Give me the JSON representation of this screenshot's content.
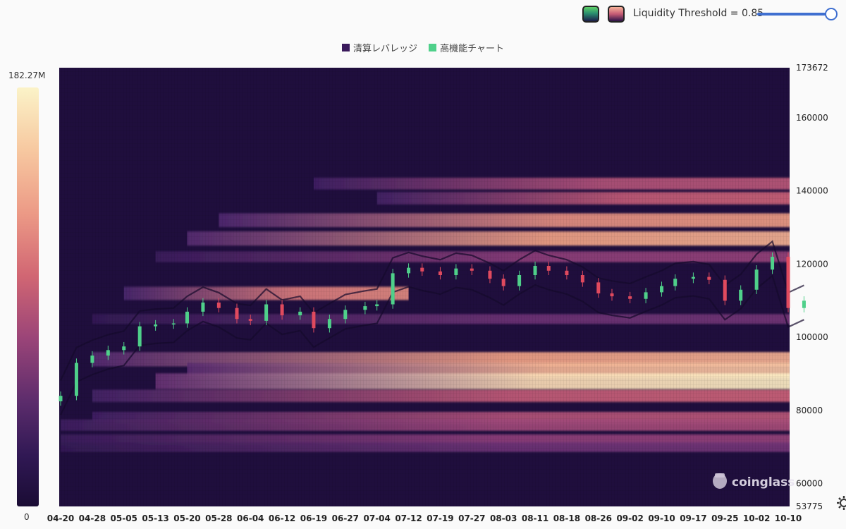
{
  "controls": {
    "threshold_label": "Liquidity Threshold = 0.85",
    "threshold_value": 0.85,
    "palette_options": [
      "green-palette",
      "magma-palette"
    ]
  },
  "legend": [
    {
      "label": "清算レバレッジ",
      "color": "#3a1a5c"
    },
    {
      "label": "高機能チャート",
      "color": "#4fd08a"
    }
  ],
  "colorbar": {
    "max_label": "182.27M",
    "min_label": "0"
  },
  "watermark": "coinglass",
  "icons": {
    "gear": "gear-icon",
    "logo": "coinglass-logo-icon"
  },
  "chart_data": {
    "type": "heatmap",
    "x_ticks": [
      "04-20",
      "04-28",
      "05-05",
      "05-13",
      "05-20",
      "05-28",
      "06-04",
      "06-12",
      "06-19",
      "06-27",
      "07-04",
      "07-12",
      "07-19",
      "07-27",
      "08-03",
      "08-11",
      "08-18",
      "08-26",
      "09-02",
      "09-10",
      "09-17",
      "09-25",
      "10-02",
      "10-10"
    ],
    "y_ticks": [
      173672,
      160000,
      140000,
      120000,
      100000,
      80000,
      60000,
      53775
    ],
    "ylim": [
      53775,
      173672
    ],
    "colorscale": {
      "min": 0,
      "max": 182270000,
      "max_label": "182.27M"
    },
    "liquidation_bands": [
      {
        "price": 142000,
        "intensity": 0.55,
        "start": "06-19"
      },
      {
        "price": 138000,
        "intensity": 0.6,
        "start": "07-04"
      },
      {
        "price": 132000,
        "intensity": 0.75,
        "start": "05-28"
      },
      {
        "price": 127000,
        "intensity": 0.8,
        "start": "05-20"
      },
      {
        "price": 122000,
        "intensity": 0.45,
        "start": "05-13"
      },
      {
        "price": 112000,
        "intensity": 0.7,
        "start": "05-05",
        "end": "07-12"
      },
      {
        "price": 105000,
        "intensity": 0.35,
        "start": "04-28"
      },
      {
        "price": 94000,
        "intensity": 0.8,
        "start": "04-28"
      },
      {
        "price": 91000,
        "intensity": 0.85,
        "start": "05-20"
      },
      {
        "price": 88000,
        "intensity": 0.95,
        "start": "05-13"
      },
      {
        "price": 84000,
        "intensity": 0.6,
        "start": "04-28"
      },
      {
        "price": 78000,
        "intensity": 0.55,
        "start": "04-28"
      },
      {
        "price": 76000,
        "intensity": 0.5,
        "start": "04-20"
      },
      {
        "price": 72000,
        "intensity": 0.45,
        "start": "04-20"
      },
      {
        "price": 70000,
        "intensity": 0.35,
        "start": "04-20"
      }
    ],
    "price_series": {
      "name": "",
      "dates": [
        "04-20",
        "04-24",
        "04-28",
        "05-01",
        "05-05",
        "05-09",
        "05-13",
        "05-17",
        "05-20",
        "05-24",
        "05-28",
        "06-01",
        "06-04",
        "06-08",
        "06-12",
        "06-16",
        "06-19",
        "06-23",
        "06-27",
        "07-01",
        "07-04",
        "07-08",
        "07-12",
        "07-15",
        "07-19",
        "07-23",
        "07-27",
        "07-31",
        "08-03",
        "08-07",
        "08-11",
        "08-14",
        "08-18",
        "08-22",
        "08-26",
        "08-29",
        "09-02",
        "09-06",
        "09-10",
        "09-13",
        "09-17",
        "09-21",
        "09-25",
        "09-29",
        "10-02",
        "10-06",
        "10-10",
        "10-14"
      ],
      "close": [
        84000,
        93000,
        95000,
        96500,
        97500,
        103000,
        103500,
        103800,
        107000,
        109500,
        108000,
        105000,
        104500,
        109000,
        106000,
        107000,
        102500,
        105000,
        107500,
        108500,
        109000,
        117500,
        119000,
        118000,
        117000,
        118800,
        118200,
        116000,
        114000,
        117000,
        119500,
        118200,
        117000,
        115000,
        112000,
        111200,
        110500,
        112300,
        114000,
        116000,
        116500,
        115700,
        110000,
        113000,
        118500,
        122000,
        108000,
        110000
      ]
    }
  }
}
